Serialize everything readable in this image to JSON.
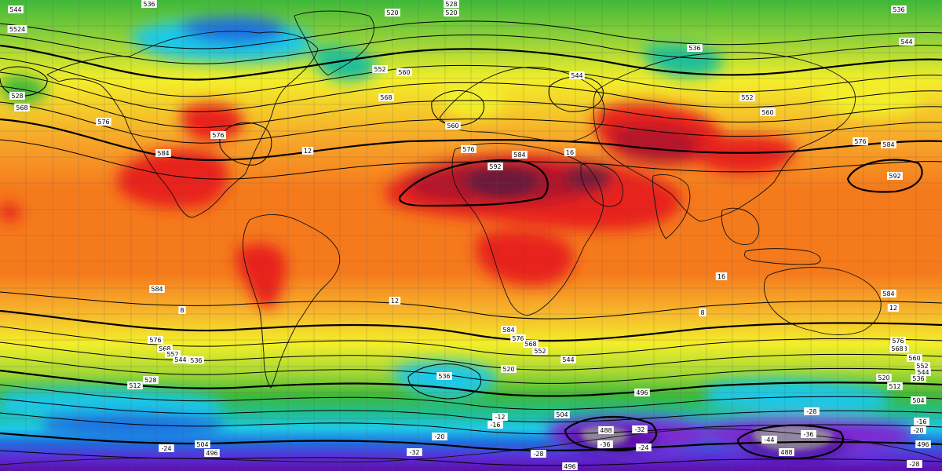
{
  "map": {
    "kind": "geopotential-height-500hPa-with-temperature-850hPa",
    "colors": {
      "deep_purple": "#5b0fa8",
      "violet": "#7b2cd1",
      "purple_blue": "#3a3ad8",
      "blue": "#1f6fe0",
      "cyan": "#1fc8e6",
      "teal": "#1fbf9a",
      "green": "#3fb83a",
      "yellow_green": "#a8d933",
      "yellow": "#f3ee2a",
      "light_orange": "#f7b42c",
      "orange": "#f57a1c",
      "red": "#e8201e",
      "dark_red": "#b3122a",
      "maroon": "#6e1a3a",
      "gray": "#9a9a9a"
    },
    "contour_labels": [
      {
        "text": "536",
        "name": "label-536-top-a"
      },
      {
        "text": "528",
        "name": "label-528-top"
      },
      {
        "text": "520",
        "name": "label-520-top"
      },
      {
        "text": "544",
        "name": "label-544-nw"
      },
      {
        "text": "5524",
        "name": "label-5524-nw"
      },
      {
        "text": "520",
        "name": "label-520-arctic"
      },
      {
        "text": "536",
        "name": "label-536-ne-a"
      },
      {
        "text": "544",
        "name": "label-544-ne"
      },
      {
        "text": "536",
        "name": "label-536-siberia"
      },
      {
        "text": "552",
        "name": "label-552-atlantic"
      },
      {
        "text": "560",
        "name": "label-560-atlantic"
      },
      {
        "text": "568",
        "name": "label-568-atlantic"
      },
      {
        "text": "560",
        "name": "label-560-europe"
      },
      {
        "text": "544",
        "name": "label-544-europe"
      },
      {
        "text": "552",
        "name": "label-552-asia"
      },
      {
        "text": "560",
        "name": "label-560-asia"
      },
      {
        "text": "576",
        "name": "label-576-pacific"
      },
      {
        "text": "584",
        "name": "label-584-pacific"
      },
      {
        "text": "592",
        "name": "label-592-pacific"
      },
      {
        "text": "576",
        "name": "label-576-us"
      },
      {
        "text": "584",
        "name": "label-584-mexico"
      },
      {
        "text": "576",
        "name": "label-576-sahara"
      },
      {
        "text": "584",
        "name": "label-584-sahara"
      },
      {
        "text": "592",
        "name": "label-592-sahara"
      },
      {
        "text": "568",
        "name": "label-568-nw-pac"
      },
      {
        "text": "528",
        "name": "label-528-nw-pac"
      },
      {
        "text": "576",
        "name": "label-576-nw-pac"
      },
      {
        "text": "576",
        "name": "label-576-s-pac"
      },
      {
        "text": "584",
        "name": "label-584-s-pac"
      },
      {
        "text": "568",
        "name": "label-568-s-pac"
      },
      {
        "text": "552",
        "name": "label-552-s-pac"
      },
      {
        "text": "544",
        "name": "label-544-s-pac"
      },
      {
        "text": "528",
        "name": "label-528-s-pac"
      },
      {
        "text": "512",
        "name": "label-512-s-pac"
      },
      {
        "text": "536",
        "name": "label-536-s-pac"
      },
      {
        "text": "584",
        "name": "label-584-s-atl"
      },
      {
        "text": "576",
        "name": "label-576-s-atl"
      },
      {
        "text": "568",
        "name": "label-568-s-atl"
      },
      {
        "text": "552",
        "name": "label-552-s-atl"
      },
      {
        "text": "544",
        "name": "label-544-s-atl"
      },
      {
        "text": "520",
        "name": "label-520-s-atl"
      },
      {
        "text": "536",
        "name": "label-536-s-ind"
      },
      {
        "text": "504",
        "name": "label-504-s-ind"
      },
      {
        "text": "496",
        "name": "label-496-s-ind"
      },
      {
        "text": "488",
        "name": "label-488-ant-a"
      },
      {
        "text": "488",
        "name": "label-488-ant-b"
      },
      {
        "text": "496",
        "name": "label-496-bottom"
      },
      {
        "text": "504",
        "name": "label-504-sw"
      },
      {
        "text": "496",
        "name": "label-496-sw"
      },
      {
        "text": "584",
        "name": "label-584-aus"
      },
      {
        "text": "576",
        "name": "label-576-e"
      },
      {
        "text": "568",
        "name": "label-568-e"
      },
      {
        "text": "560",
        "name": "label-560-e"
      },
      {
        "text": "552",
        "name": "label-552-e"
      },
      {
        "text": "544",
        "name": "label-544-e"
      },
      {
        "text": "536",
        "name": "label-536-e"
      },
      {
        "text": "520",
        "name": "label-520-e"
      },
      {
        "text": "512",
        "name": "label-512-e"
      },
      {
        "text": "504",
        "name": "label-504-e"
      },
      {
        "text": "496",
        "name": "label-496-e"
      },
      {
        "text": "584",
        "name": "label-584-e-pac"
      },
      {
        "text": "592",
        "name": "label-592-e-pac"
      },
      {
        "text": "568",
        "name": "label-568-e-pac"
      },
      {
        "text": "12",
        "name": "label-t12-a"
      },
      {
        "text": "16",
        "name": "label-t16-a"
      },
      {
        "text": "8",
        "name": "label-t8-a"
      },
      {
        "text": "12",
        "name": "label-t12-b"
      },
      {
        "text": "16",
        "name": "label-t16-b"
      },
      {
        "text": "12",
        "name": "label-t12-c"
      },
      {
        "text": "8",
        "name": "label-t8-b"
      },
      {
        "text": "-20",
        "name": "label-tm20-a"
      },
      {
        "text": "-16",
        "name": "label-tm16-a"
      },
      {
        "text": "-24",
        "name": "label-tm24-a"
      },
      {
        "text": "-28",
        "name": "label-tm28-a"
      },
      {
        "text": "-32",
        "name": "label-tm32-a"
      },
      {
        "text": "-36",
        "name": "label-tm36-a"
      },
      {
        "text": "-12",
        "name": "label-tm12-a"
      },
      {
        "text": "-28",
        "name": "label-tm28-b"
      },
      {
        "text": "-16",
        "name": "label-tm16-b"
      },
      {
        "text": "-20",
        "name": "label-tm20-b"
      },
      {
        "text": "-24",
        "name": "label-tm24-b"
      },
      {
        "text": "-32",
        "name": "label-tm32-b"
      },
      {
        "text": "-44",
        "name": "label-tm44-a"
      },
      {
        "text": "-28",
        "name": "label-tm28-c"
      },
      {
        "text": "-36",
        "name": "label-tm36-b"
      }
    ]
  }
}
